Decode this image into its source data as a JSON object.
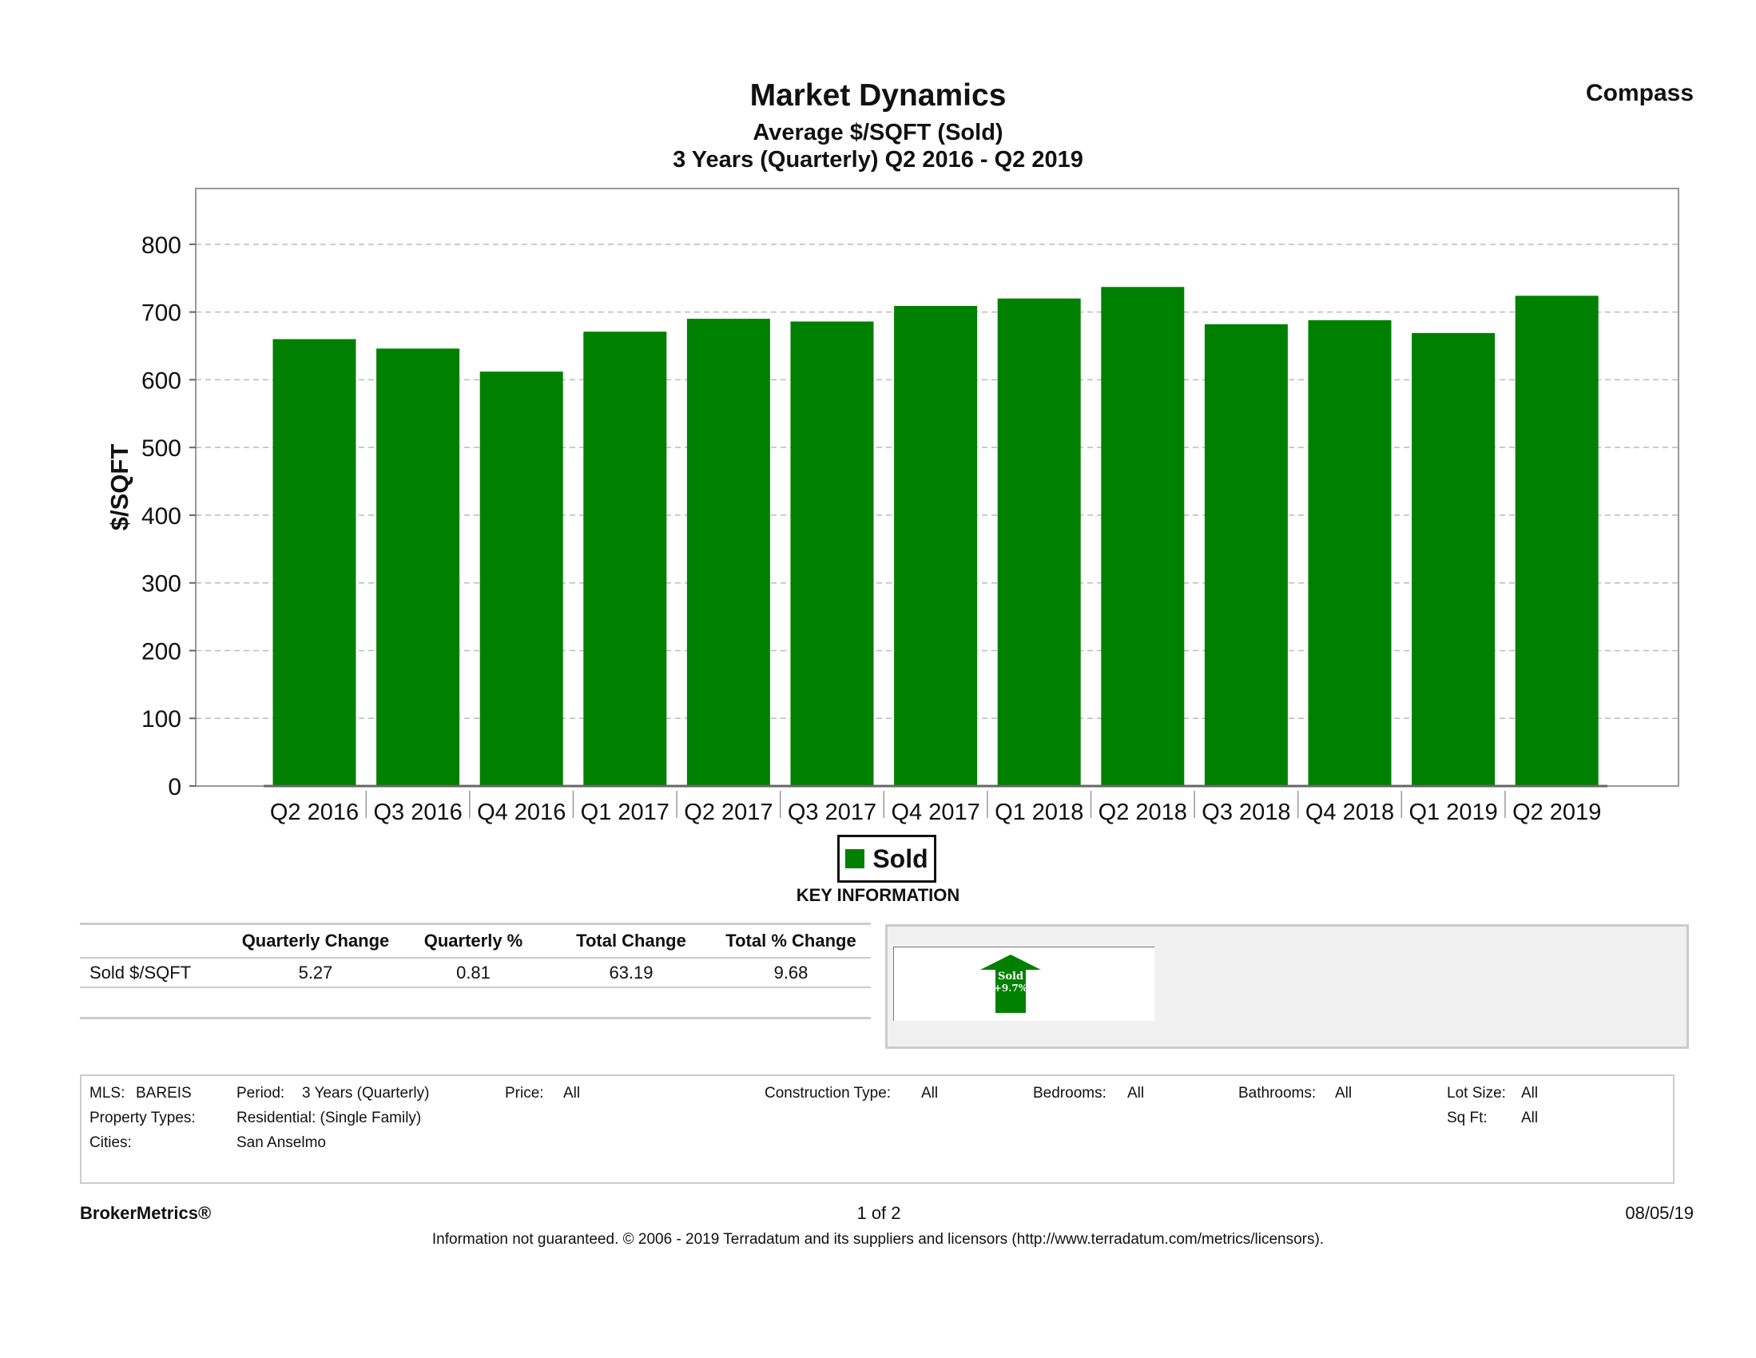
{
  "header": {
    "title": "Market Dynamics",
    "subtitle1": "Average $/SQFT (Sold)",
    "subtitle2": "3 Years (Quarterly) Q2 2016 - Q2 2019",
    "brand": "Compass"
  },
  "chart_data": {
    "type": "bar",
    "categories": [
      "Q2 2016",
      "Q3 2016",
      "Q4 2016",
      "Q1 2017",
      "Q2 2017",
      "Q3 2017",
      "Q4 2017",
      "Q1 2018",
      "Q2 2018",
      "Q3 2018",
      "Q4 2018",
      "Q1 2019",
      "Q2 2019"
    ],
    "series": [
      {
        "name": "Sold",
        "values": [
          660,
          646,
          612,
          671,
          690,
          686,
          709,
          720,
          737,
          682,
          688,
          669,
          724
        ]
      }
    ],
    "ylabel": "$/SQFT",
    "ylim": [
      0,
      880
    ],
    "yticks": [
      0,
      100,
      200,
      300,
      400,
      500,
      600,
      700,
      800
    ],
    "grid": true,
    "legend_position": "bottom-center",
    "color": "#008000"
  },
  "legend": {
    "label": "Sold"
  },
  "key_info": {
    "title": "KEY INFORMATION",
    "headers": [
      "",
      "Quarterly Change",
      "Quarterly %",
      "Total Change",
      "Total % Change"
    ],
    "row": {
      "label": "Sold $/SQFT",
      "quarterly_change": "5.27",
      "quarterly_pct": "0.81",
      "total_change": "63.19",
      "total_pct_change": "9.68"
    },
    "badge": {
      "label": "Sold",
      "value": "+9.7%",
      "color": "#008000",
      "icon": "up-arrow-icon"
    }
  },
  "criteria": {
    "mls_label": "MLS:",
    "mls_value": "BAREIS",
    "period_label": "Period:",
    "period_value": "3 Years (Quarterly)",
    "price_label": "Price:",
    "price_value": "All",
    "construction_label": "Construction Type:",
    "construction_value": "All",
    "bedrooms_label": "Bedrooms:",
    "bedrooms_value": "All",
    "bathrooms_label": "Bathrooms:",
    "bathrooms_value": "All",
    "lotsize_label": "Lot Size:",
    "lotsize_value": "All",
    "property_types_label": "Property Types:",
    "property_types_value": "Residential: (Single Family)",
    "sqft_label": "Sq Ft:",
    "sqft_value": "All",
    "cities_label": "Cities:",
    "cities_value": "San Anselmo"
  },
  "footer": {
    "left": "BrokerMetrics®",
    "center": "1 of 2",
    "right": "08/05/19",
    "disclaimer": "Information not guaranteed.  © 2006 - 2019 Terradatum and its suppliers and licensors (http://www.terradatum.com/metrics/licensors)."
  }
}
